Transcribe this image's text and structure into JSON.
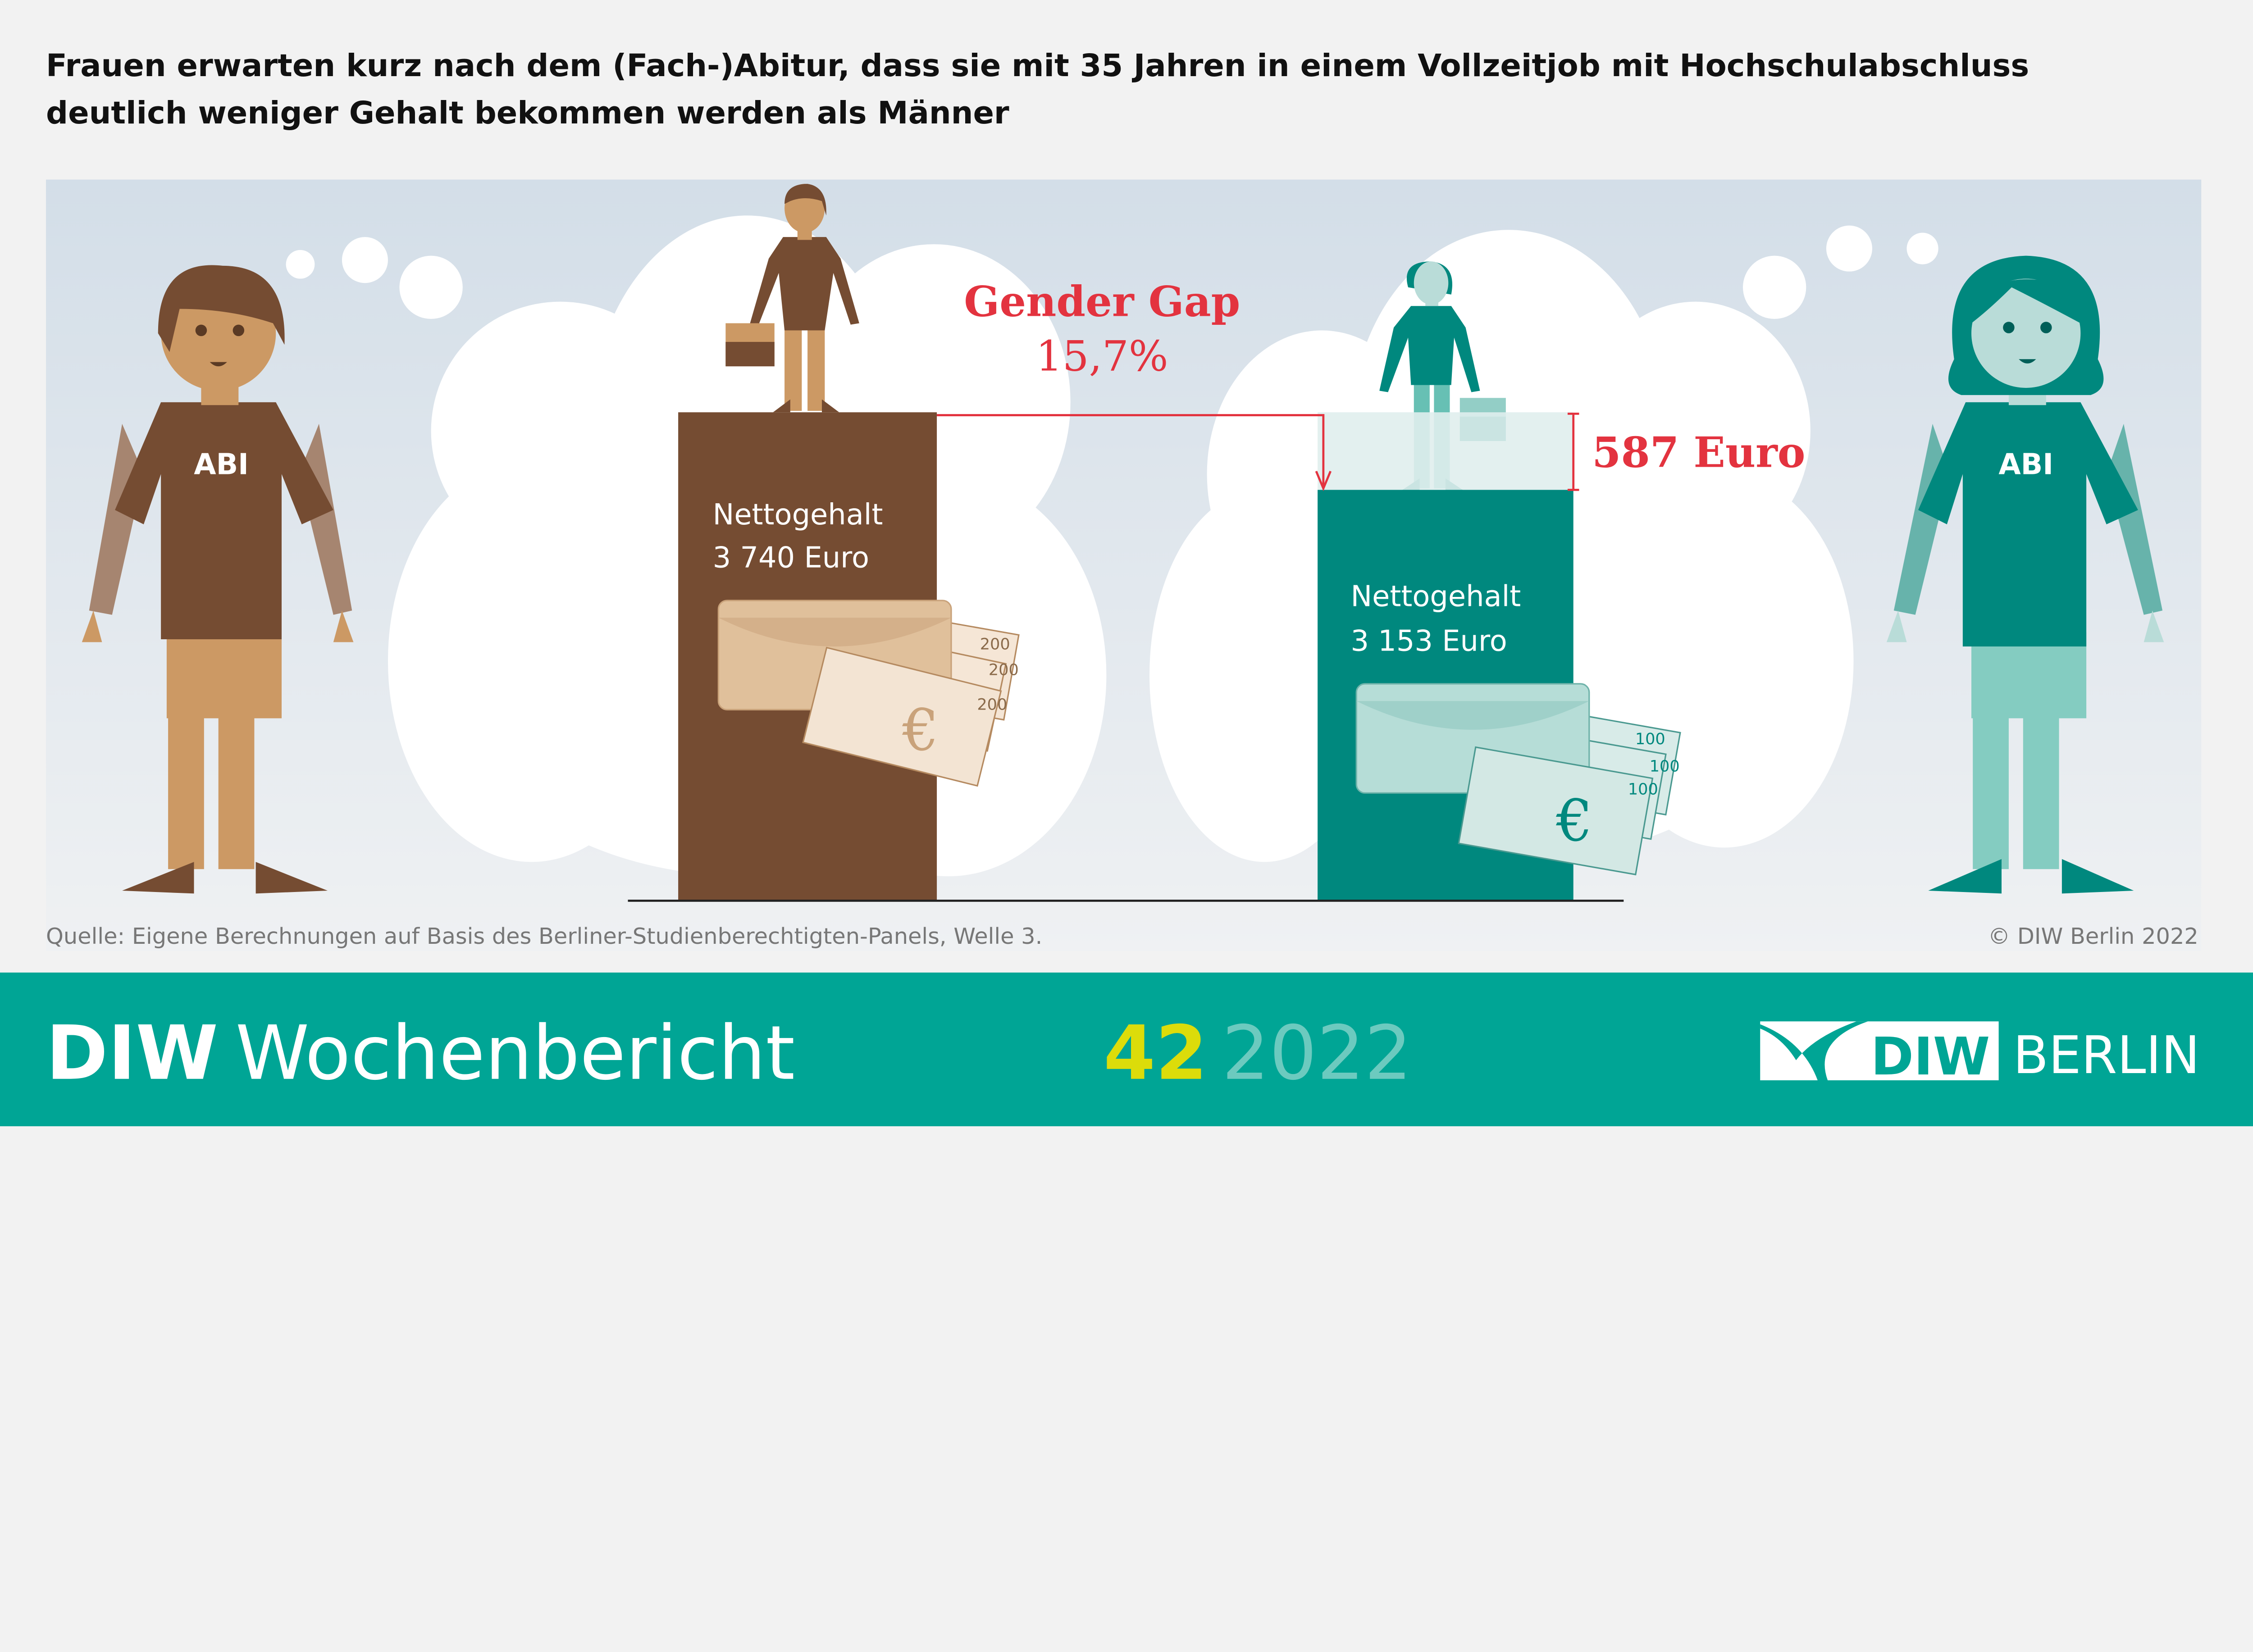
{
  "title": {
    "line1": "Frauen erwarten kurz nach dem (Fach-)Abitur, dass sie mit 35 Jahren in einem Vollzeitjob mit Hochschulabschluss",
    "line2": "deutlich weniger Gehalt bekommen werden als Männer"
  },
  "figures": {
    "male_shirt": "ABI",
    "female_shirt": "ABI"
  },
  "men": {
    "label": "Nettogehalt",
    "value": "3 740 Euro",
    "bill": "200",
    "currency_symbol": "€",
    "color": "#754c32"
  },
  "women": {
    "label": "Nettogehalt",
    "value": "3 153 Euro",
    "bill": "100",
    "currency_symbol": "€",
    "color": "#00887e"
  },
  "gap": {
    "title": "Gender Gap",
    "percent": "15,7%",
    "difference": "587 Euro",
    "color": "#e3333f"
  },
  "source": "Quelle: Eigene Berechnungen auf Basis des Berliner-Studienberechtigten-Panels, Welle 3.",
  "copyright": "© DIW Berlin 2022",
  "footer": {
    "brand_bold": "DIW",
    "brand_light": "Wochenbericht",
    "issue": "42",
    "year": "2022",
    "logo_text": "DIW",
    "logo_city": "BERLIN",
    "color": "#00a595"
  }
}
